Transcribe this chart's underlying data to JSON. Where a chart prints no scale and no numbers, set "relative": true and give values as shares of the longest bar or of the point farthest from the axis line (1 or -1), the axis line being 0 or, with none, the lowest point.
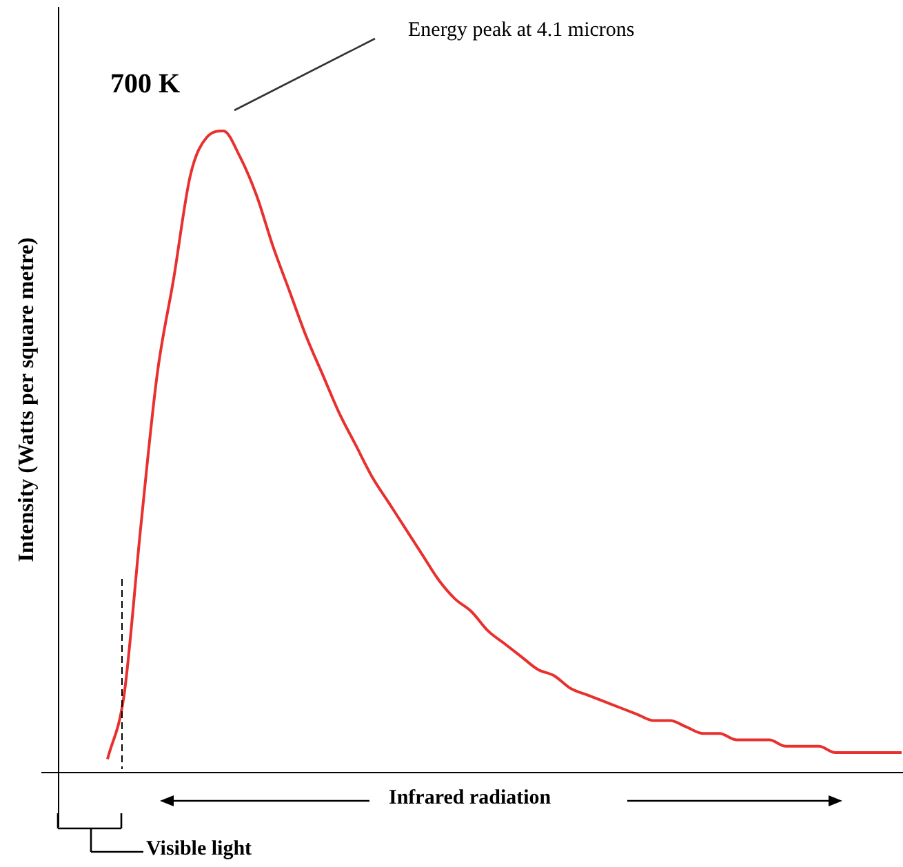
{
  "chart_data": {
    "type": "line",
    "relative": true,
    "ylabel": "Intensity  (Watts per square metre)",
    "annotations": [
      "700 K",
      "Energy peak at 4.1 microns",
      "Infrared radiation",
      "Visible light"
    ],
    "categories": [
      null,
      null,
      null,
      null,
      null,
      null,
      null,
      null,
      null,
      null,
      null,
      null,
      null,
      null,
      null,
      null,
      null,
      null,
      null,
      null,
      null,
      null,
      null,
      null,
      null,
      null,
      null,
      null,
      null,
      null,
      null,
      null,
      null,
      null,
      null,
      null,
      null,
      null,
      null,
      null,
      null,
      null,
      null,
      null,
      null,
      null,
      null,
      null,
      null,
      null,
      null,
      null
    ],
    "series": [
      {
        "color": "#e8302e",
        "values": [
          null,
          null,
          null,
          0.02,
          0.12,
          0.38,
          0.62,
          0.77,
          0.93,
          0.99,
          1.0,
          0.96,
          0.9,
          0.82,
          0.75,
          0.68,
          0.62,
          0.56,
          0.51,
          0.46,
          0.42,
          0.38,
          0.34,
          0.3,
          0.27,
          0.25,
          0.22,
          0.2,
          0.18,
          0.16,
          0.15,
          0.13,
          0.12,
          0.11,
          0.1,
          0.09,
          0.08,
          0.08,
          0.07,
          0.06,
          0.06,
          0.05,
          0.05,
          0.05,
          0.04,
          0.04,
          0.04,
          0.03,
          0.03,
          0.03,
          0.03,
          0.03
        ]
      }
    ]
  }
}
